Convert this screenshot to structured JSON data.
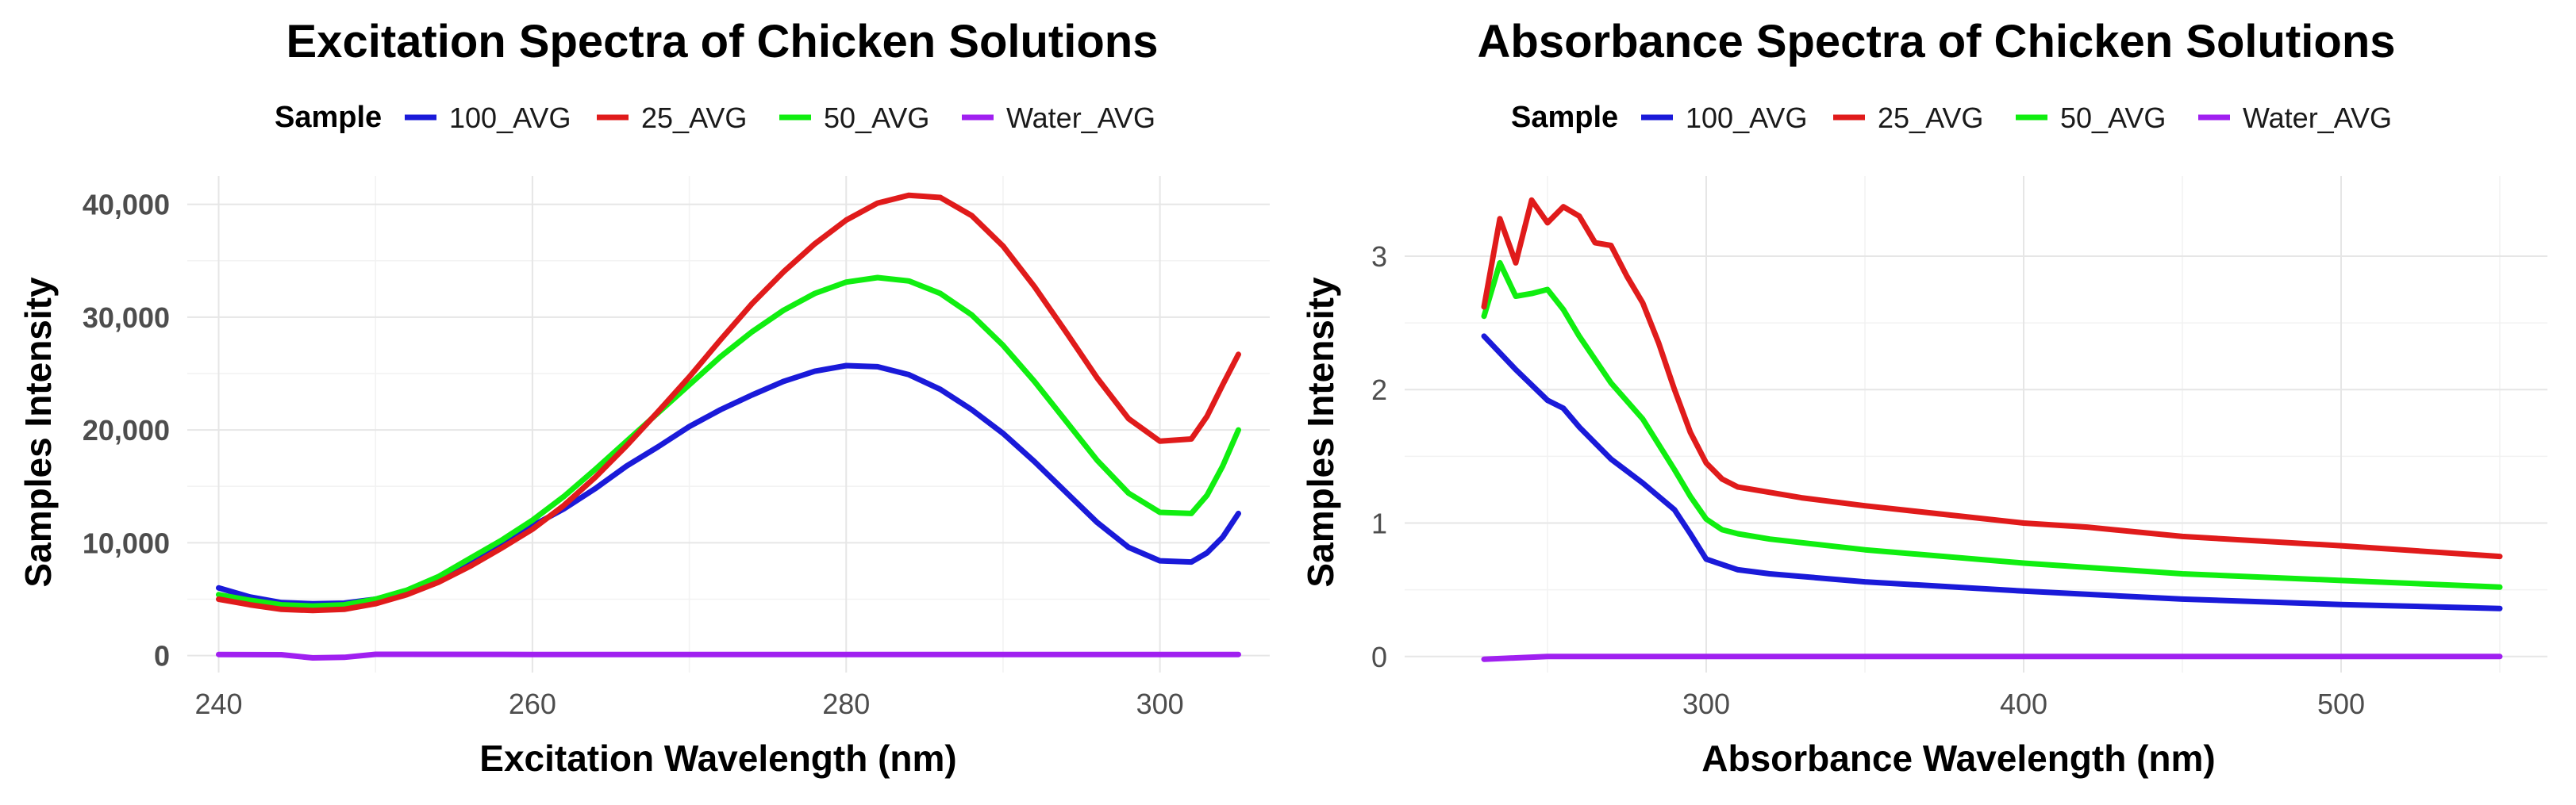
{
  "colors": {
    "100_AVG": "#1a1ad9",
    "25_AVG": "#e01b1b",
    "50_AVG": "#10ee10",
    "Water_AVG": "#a020f0"
  },
  "chart_data": [
    {
      "type": "line",
      "title": "Excitation Spectra of Chicken Solutions",
      "xlabel": "Excitation Wavelength (nm)",
      "ylabel": "Samples Intensity",
      "legend_title": "Sample",
      "legend_position": "top",
      "grid": true,
      "xlim": [
        238,
        307
      ],
      "ylim": [
        -1500,
        42500
      ],
      "x_ticks": [
        240,
        260,
        280,
        300
      ],
      "x_tick_labels": [
        "240",
        "260",
        "280",
        "300"
      ],
      "y_ticks": [
        0,
        10000,
        20000,
        30000,
        40000
      ],
      "y_tick_labels": [
        "0",
        "10,000",
        "20,000",
        "30,000",
        "40,000"
      ],
      "series": [
        {
          "name": "100_AVG",
          "x": [
            240,
            242,
            244,
            246,
            248,
            250,
            252,
            254,
            256,
            258,
            260,
            262,
            264,
            266,
            268,
            270,
            272,
            274,
            276,
            278,
            280,
            282,
            284,
            286,
            288,
            290,
            292,
            294,
            296,
            298,
            300,
            302,
            303,
            304,
            305
          ],
          "y": [
            6000,
            5200,
            4700,
            4600,
            4650,
            5000,
            5700,
            6800,
            8200,
            9800,
            11500,
            13000,
            14800,
            16800,
            18500,
            20300,
            21800,
            23100,
            24300,
            25200,
            25700,
            25600,
            24900,
            23600,
            21800,
            19700,
            17200,
            14500,
            11800,
            9600,
            8400,
            8300,
            9100,
            10500,
            12600
          ]
        },
        {
          "name": "25_AVG",
          "x": [
            240,
            242,
            244,
            246,
            248,
            250,
            252,
            254,
            256,
            258,
            260,
            262,
            264,
            266,
            268,
            270,
            272,
            274,
            276,
            278,
            280,
            282,
            284,
            286,
            288,
            290,
            292,
            294,
            296,
            298,
            300,
            302,
            303,
            304,
            305
          ],
          "y": [
            5000,
            4500,
            4100,
            4000,
            4100,
            4600,
            5400,
            6500,
            7900,
            9500,
            11200,
            13300,
            15800,
            18600,
            21600,
            24700,
            28000,
            31200,
            34000,
            36500,
            38600,
            40100,
            40800,
            40600,
            39000,
            36300,
            32700,
            28700,
            24600,
            21000,
            19000,
            19200,
            21200,
            24000,
            26700
          ]
        },
        {
          "name": "50_AVG",
          "x": [
            240,
            242,
            244,
            246,
            248,
            250,
            252,
            254,
            256,
            258,
            260,
            262,
            264,
            266,
            268,
            270,
            272,
            274,
            276,
            278,
            280,
            282,
            284,
            286,
            288,
            290,
            292,
            294,
            296,
            298,
            300,
            302,
            303,
            304,
            305
          ],
          "y": [
            5400,
            4900,
            4500,
            4400,
            4500,
            5000,
            5800,
            7000,
            8600,
            10200,
            12000,
            14100,
            16500,
            19000,
            21500,
            24000,
            26500,
            28700,
            30600,
            32100,
            33100,
            33500,
            33200,
            32100,
            30200,
            27500,
            24300,
            20800,
            17300,
            14400,
            12700,
            12600,
            14200,
            16800,
            20000
          ]
        },
        {
          "name": "Water_AVG",
          "x": [
            240,
            244,
            246,
            248,
            250,
            260,
            270,
            280,
            290,
            300,
            305
          ],
          "y": [
            100,
            80,
            -200,
            -150,
            120,
            100,
            100,
            100,
            100,
            100,
            100
          ]
        }
      ]
    },
    {
      "type": "line",
      "title": "Absorbance Spectra of Chicken Solutions",
      "xlabel": "Absorbance Wavelength (nm)",
      "ylabel": "Samples Intensity",
      "legend_title": "Sample",
      "legend_position": "top",
      "grid": true,
      "xlim": [
        205,
        565
      ],
      "ylim": [
        -0.12,
        3.6
      ],
      "x_ticks": [
        300,
        400,
        500
      ],
      "x_tick_labels": [
        "300",
        "400",
        "500"
      ],
      "y_ticks": [
        0,
        1,
        2,
        3
      ],
      "y_tick_labels": [
        "0",
        "1",
        "2",
        "3"
      ],
      "series": [
        {
          "name": "100_AVG",
          "x": [
            230,
            240,
            250,
            255,
            260,
            270,
            280,
            290,
            295,
            300,
            310,
            320,
            350,
            400,
            450,
            500,
            550
          ],
          "y": [
            2.4,
            2.15,
            1.92,
            1.86,
            1.72,
            1.48,
            1.3,
            1.1,
            0.92,
            0.73,
            0.65,
            0.62,
            0.56,
            0.49,
            0.43,
            0.39,
            0.36
          ]
        },
        {
          "name": "25_AVG",
          "x": [
            230,
            235,
            240,
            245,
            250,
            255,
            260,
            265,
            270,
            275,
            280,
            285,
            290,
            295,
            300,
            305,
            310,
            320,
            330,
            350,
            400,
            420,
            450,
            500,
            550
          ],
          "y": [
            2.62,
            3.28,
            2.95,
            3.42,
            3.25,
            3.37,
            3.3,
            3.1,
            3.08,
            2.85,
            2.65,
            2.35,
            2.0,
            1.68,
            1.45,
            1.33,
            1.27,
            1.23,
            1.19,
            1.13,
            1.0,
            0.97,
            0.9,
            0.83,
            0.75
          ]
        },
        {
          "name": "50_AVG",
          "x": [
            230,
            235,
            240,
            245,
            250,
            255,
            260,
            270,
            280,
            290,
            295,
            300,
            305,
            310,
            320,
            350,
            400,
            450,
            500,
            550
          ],
          "y": [
            2.55,
            2.95,
            2.7,
            2.72,
            2.75,
            2.6,
            2.4,
            2.05,
            1.78,
            1.4,
            1.2,
            1.03,
            0.95,
            0.92,
            0.88,
            0.8,
            0.7,
            0.62,
            0.57,
            0.52
          ]
        },
        {
          "name": "Water_AVG",
          "x": [
            230,
            240,
            250,
            300,
            400,
            500,
            550
          ],
          "y": [
            -0.02,
            -0.01,
            0.0,
            0.0,
            0.0,
            0.0,
            0.0
          ]
        }
      ]
    }
  ]
}
